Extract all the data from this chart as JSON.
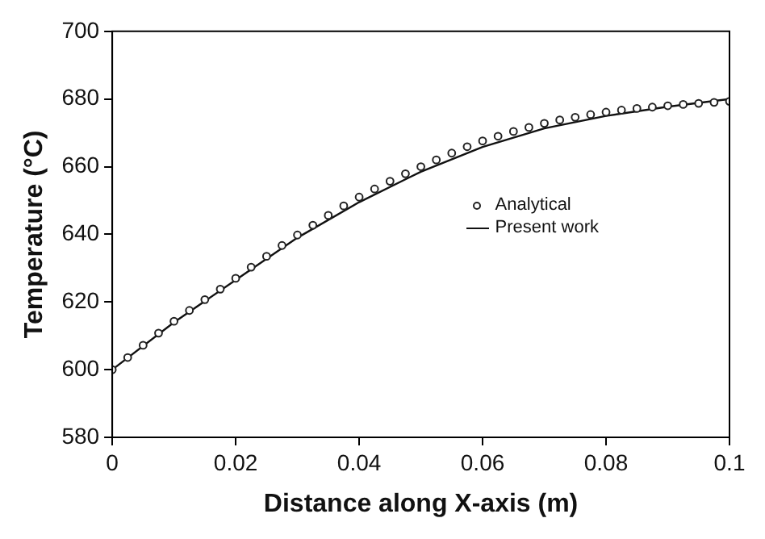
{
  "chart_data": {
    "type": "line",
    "xlabel": "Distance along X-axis (m)",
    "ylabel": "Temperature (°C)",
    "xlim": [
      0,
      0.1
    ],
    "xticks": [
      0,
      0.02,
      0.04,
      0.06,
      0.08,
      0.1
    ],
    "ylim": [
      580,
      700
    ],
    "yticks": [
      580,
      600,
      620,
      640,
      660,
      680,
      700
    ],
    "grid": false,
    "legend": "right",
    "series": [
      {
        "name": "Analytical",
        "type": "scatter",
        "marker": "circle",
        "color": "#222222",
        "x": [
          0,
          0.0025,
          0.005,
          0.0075,
          0.01,
          0.0125,
          0.015,
          0.0175,
          0.02,
          0.0225,
          0.025,
          0.0275,
          0.03,
          0.0325,
          0.035,
          0.0375,
          0.04,
          0.0425,
          0.045,
          0.0475,
          0.05,
          0.0525,
          0.055,
          0.0575,
          0.06,
          0.0625,
          0.065,
          0.0675,
          0.07,
          0.0725,
          0.075,
          0.0775,
          0.08,
          0.0825,
          0.085,
          0.0875,
          0.09,
          0.0925,
          0.095,
          0.0975,
          0.1
        ],
        "values": [
          600,
          603.6,
          607.2,
          610.8,
          614.3,
          617.5,
          620.7,
          623.8,
          627,
          630.3,
          633.5,
          636.7,
          639.8,
          642.7,
          645.6,
          648.4,
          651,
          653.4,
          655.7,
          657.9,
          660,
          662,
          664,
          665.9,
          667.6,
          669,
          670.4,
          671.6,
          672.8,
          673.8,
          674.6,
          675.4,
          676.1,
          676.7,
          677.2,
          677.6,
          678,
          678.4,
          678.7,
          679,
          679.3
        ]
      },
      {
        "name": "Present work",
        "type": "line",
        "marker": "none",
        "line_style": "solid",
        "color": "#111111",
        "x": [
          0,
          0.01,
          0.02,
          0.03,
          0.04,
          0.05,
          0.06,
          0.07,
          0.08,
          0.09,
          0.1
        ],
        "values": [
          600,
          614,
          626.5,
          639,
          649.5,
          658.5,
          665.8,
          671.3,
          675,
          677.7,
          680
        ]
      }
    ]
  }
}
